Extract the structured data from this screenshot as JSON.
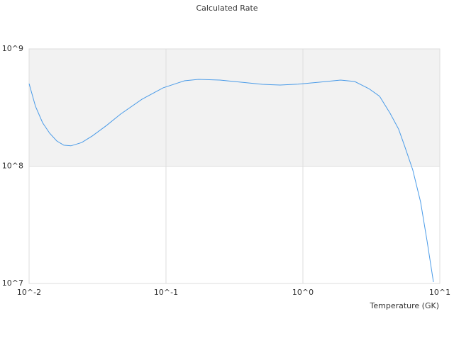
{
  "chart_data": {
    "type": "line",
    "title": "Calculated Rate",
    "x_label": "Temperature (GK)",
    "xscale": "log",
    "yscale": "log",
    "grid": true,
    "band_color": "#f2f2f2",
    "xlim": [
      0.01,
      10
    ],
    "ylim": [
      10000000,
      1000000000
    ],
    "xticks": [
      {
        "value": 0.01,
        "label": "10^-2"
      },
      {
        "value": 0.1,
        "label": "10^-1"
      },
      {
        "value": 1,
        "label": "10^0"
      },
      {
        "value": 10,
        "label": "10^1"
      }
    ],
    "yticks": [
      {
        "value": 10000000,
        "label": "10^7"
      },
      {
        "value": 100000000,
        "label": "10^8"
      },
      {
        "value": 1000000000,
        "label": "10^9"
      }
    ],
    "series": [
      {
        "color": "#4a9be8",
        "x": [
          0.01,
          0.01113,
          0.01254,
          0.01413,
          0.01592,
          0.01794,
          0.0202,
          0.0242,
          0.0289,
          0.0367,
          0.0466,
          0.0667,
          0.0953,
          0.1364,
          0.173,
          0.248,
          0.354,
          0.507,
          0.682,
          0.92,
          1.316,
          1.884,
          2.39,
          3.03,
          3.63,
          4.34,
          5.0,
          5.51,
          6.35,
          7.24,
          8.07,
          8.98
        ],
        "values": [
          506000000,
          324000000,
          235000000,
          191000000,
          164000000,
          151000000,
          149000000,
          159000000,
          181000000,
          222000000,
          278000000,
          372000000,
          466000000,
          535000000,
          550000000,
          542000000,
          520000000,
          499000000,
          492000000,
          500000000,
          520000000,
          542000000,
          527000000,
          459000000,
          394000000,
          282000000,
          207000000,
          151000000,
          92700000,
          49500000,
          23100000,
          10300000
        ]
      }
    ]
  }
}
